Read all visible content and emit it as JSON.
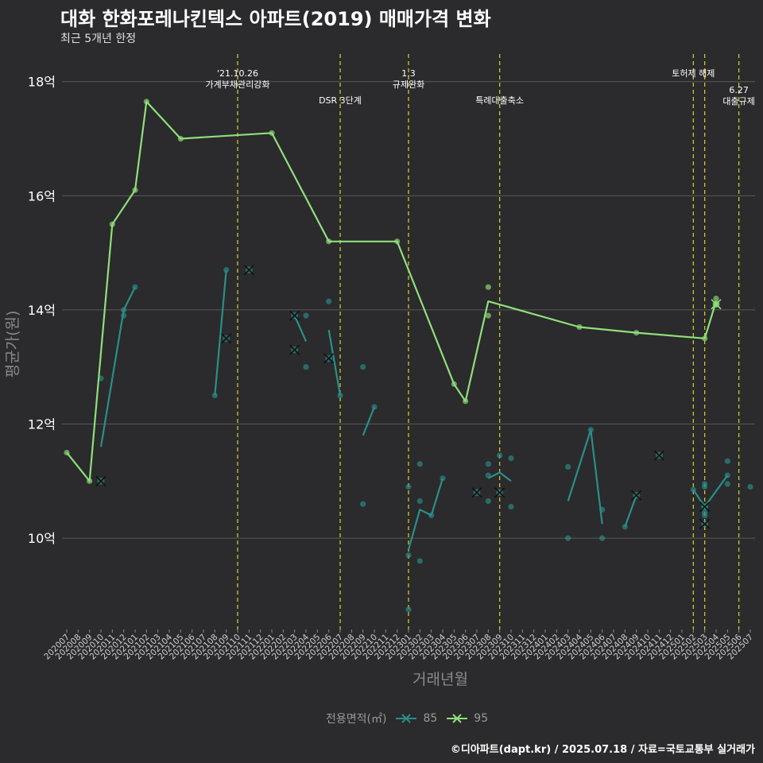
{
  "title": "대화 한화포레나킨텍스 아파트(2019) 매매가격 변화",
  "subtitle": "최근 5개년 한정",
  "footer": "©디아파트(dapt.kr) / 2025.07.18 / 자료=국토교통부 실거래가",
  "colors": {
    "background": "#2b2a2c",
    "grid": "#5a5a5a",
    "event_line": "#d6d62a",
    "series_85": "#2a8f8a",
    "series_95": "#8ee07a"
  },
  "chart_data": {
    "type": "line",
    "xlabel": "거래년월",
    "ylabel": "평균가(원)",
    "ylim": [
      8.4,
      18.4
    ],
    "y_ticks": [
      {
        "value": 10,
        "label": "10억"
      },
      {
        "value": 12,
        "label": "12억"
      },
      {
        "value": 14,
        "label": "14억"
      },
      {
        "value": 16,
        "label": "16억"
      },
      {
        "value": 18,
        "label": "18억"
      }
    ],
    "categories": [
      "202007",
      "202008",
      "202009",
      "202010",
      "202011",
      "202012",
      "202101",
      "202102",
      "202103",
      "202104",
      "202105",
      "202106",
      "202107",
      "202108",
      "202109",
      "202110",
      "202111",
      "202112",
      "202201",
      "202202",
      "202203",
      "202204",
      "202205",
      "202206",
      "202207",
      "202208",
      "202209",
      "202210",
      "202211",
      "202212",
      "202301",
      "202302",
      "202303",
      "202304",
      "202305",
      "202306",
      "202307",
      "202308",
      "202309",
      "202310",
      "202311",
      "202312",
      "202401",
      "202402",
      "202403",
      "202404",
      "202405",
      "202406",
      "202407",
      "202408",
      "202409",
      "202410",
      "202411",
      "202412",
      "202501",
      "202502",
      "202503",
      "202504",
      "202505",
      "202506",
      "202507"
    ],
    "legend_title": "전용면적(㎡)",
    "series": [
      {
        "name": "85",
        "lines": [
          [
            [
              "202010",
              11.6
            ],
            [
              "202011",
              12.8
            ]
          ],
          [
            [
              "202011",
              12.8
            ],
            [
              "202012",
              14.0
            ],
            [
              "202101",
              14.4
            ]
          ],
          [
            [
              "202108",
              12.5
            ],
            [
              "202109",
              14.7
            ]
          ],
          [
            [
              "202203",
              13.9
            ],
            [
              "202204",
              13.45
            ]
          ],
          [
            [
              "202206",
              13.65
            ],
            [
              "202207",
              12.5
            ]
          ],
          [
            [
              "202209",
              11.8
            ],
            [
              "202210",
              12.3
            ]
          ],
          [
            [
              "202301",
              9.8
            ],
            [
              "202302",
              10.5
            ],
            [
              "202303",
              10.4
            ],
            [
              "202304",
              11.05
            ]
          ],
          [
            [
              "202308",
              11.05
            ],
            [
              "202309",
              11.15
            ],
            [
              "202310",
              11.0
            ]
          ],
          [
            [
              "202403",
              10.65
            ],
            [
              "202405",
              11.9
            ],
            [
              "202406",
              10.25
            ]
          ],
          [
            [
              "202408",
              10.2
            ],
            [
              "202409",
              10.75
            ]
          ],
          [
            [
              "202502",
              10.85
            ],
            [
              "202503",
              10.55
            ],
            [
              "202505",
              11.1
            ]
          ]
        ],
        "points": [
          [
            "202010",
            12.8
          ],
          [
            "202012",
            13.9
          ],
          [
            "202012",
            14.0
          ],
          [
            "202101",
            14.4
          ],
          [
            "202108",
            12.5
          ],
          [
            "202109",
            14.7
          ],
          [
            "202204",
            13.9
          ],
          [
            "202204",
            13.0
          ],
          [
            "202206",
            14.15
          ],
          [
            "202207",
            12.5
          ],
          [
            "202209",
            13.0
          ],
          [
            "202209",
            10.6
          ],
          [
            "202210",
            12.3
          ],
          [
            "202301",
            10.9
          ],
          [
            "202301",
            9.7
          ],
          [
            "202301",
            8.75
          ],
          [
            "202302",
            11.3
          ],
          [
            "202302",
            10.65
          ],
          [
            "202302",
            9.6
          ],
          [
            "202303",
            10.4
          ],
          [
            "202304",
            11.05
          ],
          [
            "202308",
            11.3
          ],
          [
            "202308",
            11.1
          ],
          [
            "202308",
            10.65
          ],
          [
            "202309",
            11.45
          ],
          [
            "202310",
            11.4
          ],
          [
            "202310",
            10.55
          ],
          [
            "202403",
            11.25
          ],
          [
            "202403",
            10.0
          ],
          [
            "202405",
            11.9
          ],
          [
            "202406",
            10.5
          ],
          [
            "202406",
            10.0
          ],
          [
            "202408",
            10.2
          ],
          [
            "202502",
            10.85
          ],
          [
            "202503",
            10.95
          ],
          [
            "202503",
            10.9
          ],
          [
            "202503",
            10.55
          ],
          [
            "202503",
            10.45
          ],
          [
            "202503",
            10.4
          ],
          [
            "202505",
            11.35
          ],
          [
            "202505",
            11.1
          ],
          [
            "202505",
            10.95
          ],
          [
            "202507",
            10.9
          ]
        ],
        "single_marks": [
          [
            "202010",
            11.0
          ],
          [
            "202109",
            13.5
          ],
          [
            "202111",
            14.7
          ],
          [
            "202203",
            13.9
          ],
          [
            "202203",
            13.3
          ],
          [
            "202206",
            13.15
          ],
          [
            "202307",
            10.8
          ],
          [
            "202309",
            10.8
          ],
          [
            "202409",
            10.75
          ],
          [
            "202411",
            11.45
          ],
          [
            "202503",
            10.55
          ],
          [
            "202503",
            10.25
          ]
        ]
      },
      {
        "name": "95",
        "lines": [
          [
            [
              "202007",
              11.5
            ],
            [
              "202009",
              11.0
            ],
            [
              "202011",
              15.5
            ],
            [
              "202101",
              16.1
            ],
            [
              "202102",
              17.65
            ],
            [
              "202105",
              17.0
            ],
            [
              "202201",
              17.1
            ],
            [
              "202206",
              15.2
            ],
            [
              "202212",
              15.2
            ],
            [
              "202305",
              12.7
            ],
            [
              "202306",
              12.4
            ],
            [
              "202308",
              14.15
            ],
            [
              "202404",
              13.7
            ],
            [
              "202409",
              13.6
            ],
            [
              "202503",
              13.5
            ],
            [
              "202504",
              14.15
            ]
          ]
        ],
        "points": [
          [
            "202007",
            11.5
          ],
          [
            "202009",
            11.0
          ],
          [
            "202011",
            15.5
          ],
          [
            "202101",
            16.1
          ],
          [
            "202102",
            17.65
          ],
          [
            "202105",
            17.0
          ],
          [
            "202201",
            17.1
          ],
          [
            "202206",
            15.2
          ],
          [
            "202212",
            15.2
          ],
          [
            "202305",
            12.7
          ],
          [
            "202306",
            12.4
          ],
          [
            "202308",
            14.4
          ],
          [
            "202308",
            13.9
          ],
          [
            "202404",
            13.7
          ],
          [
            "202409",
            13.6
          ],
          [
            "202503",
            13.5
          ],
          [
            "202504",
            14.2
          ],
          [
            "202504",
            14.1
          ]
        ],
        "single_marks": [
          [
            "202504",
            14.1
          ]
        ]
      }
    ],
    "events": [
      {
        "x": "202110",
        "label": "'21.10.26\n가계부채관리강화",
        "row": 1
      },
      {
        "x": "202207",
        "label": "DSR 3단계",
        "row": 2
      },
      {
        "x": "202301",
        "label": "1.3\n규제완화",
        "row": 1
      },
      {
        "x": "202309",
        "label": "특례대출축소",
        "row": 2
      },
      {
        "x": "202502",
        "label": "토허제 해제",
        "row": 1
      },
      {
        "x": "202503",
        "label": "",
        "row": 1
      },
      {
        "x": "202506",
        "label": "6.27\n대출규제",
        "row": 3
      }
    ]
  }
}
